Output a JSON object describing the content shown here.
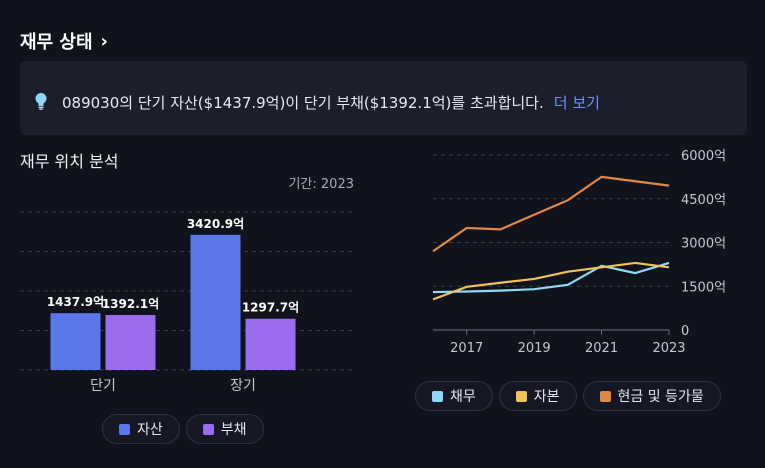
{
  "header": {
    "title": "재무 상태",
    "chevron": "›"
  },
  "banner": {
    "icon": "lightbulb-icon",
    "message": "089030의 단기 자산($1437.9억)이 단기 부채($1392.1억)를 초과합니다.",
    "more_link": "더 보기"
  },
  "position_section": {
    "title": "재무 위치 분석",
    "period_label": "기간: 2023"
  },
  "colors": {
    "assets": "#5b78eb",
    "liabilities": "#9b6cf0",
    "debt": "#8ed8f8",
    "equity": "#f0c25a",
    "cash": "#e0874a"
  },
  "chart_data": [
    {
      "type": "bar",
      "title": "재무 위치 분석",
      "categories": [
        "단기",
        "장기"
      ],
      "series": [
        {
          "name": "자산",
          "values": [
            1437.9,
            3420.9
          ],
          "labels": [
            "1437.9억",
            "3420.9억"
          ]
        },
        {
          "name": "부채",
          "values": [
            1392.1,
            1297.7
          ],
          "labels": [
            "1392.1억",
            "1297.7억"
          ]
        }
      ],
      "ylim": [
        0,
        4000
      ]
    },
    {
      "type": "line",
      "x": [
        2016,
        2017,
        2018,
        2019,
        2020,
        2021,
        2022,
        2023
      ],
      "x_ticks": [
        "2017",
        "2019",
        "2021",
        "2023"
      ],
      "y_ticks": [
        "0",
        "1500억",
        "3000억",
        "4500억",
        "6000억"
      ],
      "ylim": [
        0,
        6000
      ],
      "series": [
        {
          "name": "채무",
          "values": [
            1300,
            1320,
            1350,
            1400,
            1550,
            2200,
            1950,
            2300
          ]
        },
        {
          "name": "자본",
          "values": [
            1050,
            1480,
            1620,
            1750,
            2000,
            2150,
            2300,
            2150
          ]
        },
        {
          "name": "현금 및 등가물",
          "values": [
            2700,
            3500,
            3450,
            3950,
            4450,
            5250,
            5100,
            4950
          ]
        }
      ]
    }
  ]
}
